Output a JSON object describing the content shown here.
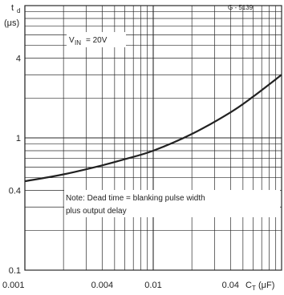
{
  "chart_data": {
    "type": "line",
    "code": "G - 5139",
    "ylabel_symbol": "t",
    "ylabel_sub": "d",
    "ylabel_unit": "(μs)",
    "xlabel_symbol": "C",
    "xlabel_sub": "T",
    "xlabel_unit": "(μF)",
    "condition_main": "V",
    "condition_sub": "IN",
    "condition_value": "= 20V",
    "note_line1": "Note: Dead time = blanking pulse width",
    "note_line2": "plus output delay",
    "x_scale": "log",
    "y_scale": "log",
    "xlim": [
      0.001,
      0.1
    ],
    "ylim": [
      0.1,
      10
    ],
    "x_tick_labels": [
      "0.001",
      "0.004",
      "0.01",
      "0.04"
    ],
    "x_tick_values": [
      0.001,
      0.004,
      0.01,
      0.04
    ],
    "y_tick_labels": [
      "0.1",
      "0.4",
      "1",
      "4"
    ],
    "y_tick_values": [
      0.1,
      0.4,
      1,
      4
    ],
    "grid": true,
    "series": [
      {
        "x": [
          0.001,
          0.002,
          0.004,
          0.006,
          0.01,
          0.02,
          0.04,
          0.06,
          0.1
        ],
        "y": [
          0.47,
          0.53,
          0.62,
          0.69,
          0.8,
          1.07,
          1.56,
          2.05,
          3.0
        ]
      }
    ],
    "line_color": "#222222",
    "grid_color": "#2a2a2a",
    "box_color": "#ffffff"
  }
}
